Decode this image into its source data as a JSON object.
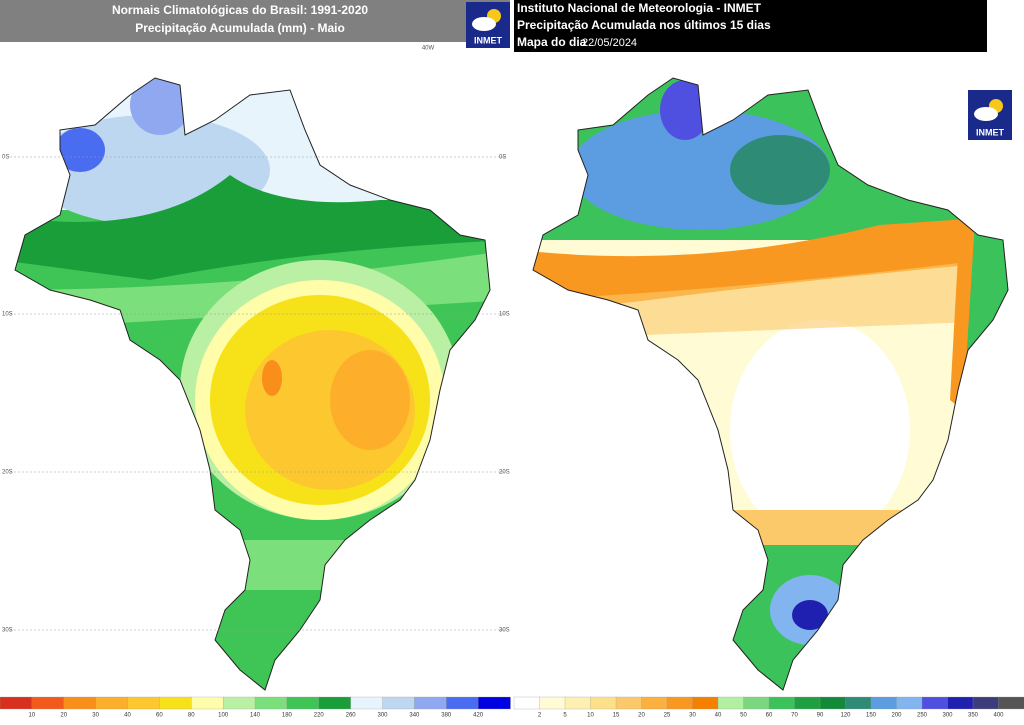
{
  "left_panel": {
    "title_lines": [
      "Normais Climatológicas do Brasil: 1991-2020",
      "Precipitação Acumulada (mm) - Maio"
    ],
    "logo": "INMET",
    "lat_labels": [
      "0S",
      "10S",
      "20S",
      "30S"
    ],
    "lon_label": "40W",
    "colorbar": {
      "colors": [
        "#d7301f",
        "#f4591c",
        "#f98e1a",
        "#fdae2a",
        "#fdc82f",
        "#f7e21a",
        "#fffcaa",
        "#b9f0a3",
        "#7be07b",
        "#3fc456",
        "#1a9e3a",
        "#e8f4fb",
        "#bdd7f0",
        "#8fa8ef",
        "#4a6cf0",
        "#0000e0"
      ],
      "labels": [
        10,
        20,
        30,
        40,
        60,
        80,
        100,
        140,
        180,
        220,
        260,
        300,
        340,
        380,
        420
      ]
    }
  },
  "right_panel": {
    "title_lines": [
      "Instituto Nacional de Meteorologia - INMET",
      "Precipitação Acumulada nos últimos 15 dias"
    ],
    "date_prefix": "Mapa do dia",
    "date": "22/05/2024",
    "logo": "INMET",
    "lat_labels": [
      "0S",
      "10S",
      "20S",
      "30S"
    ],
    "colorbar": {
      "colors": [
        "#ffffff",
        "#fffbd5",
        "#fdf0b0",
        "#fde18a",
        "#fcc96a",
        "#fbb040",
        "#f99820",
        "#f57f00",
        "#b0f0a0",
        "#7ad780",
        "#3cc25a",
        "#1ea040",
        "#128a3a",
        "#2e8c76",
        "#5b9de0",
        "#82b4f0",
        "#5050e0",
        "#2020b0",
        "#3c3c7a",
        "#555555"
      ],
      "labels": [
        2,
        5,
        10,
        15,
        20,
        25,
        30,
        40,
        50,
        60,
        70,
        90,
        120,
        150,
        200,
        250,
        300,
        350,
        400
      ]
    }
  }
}
